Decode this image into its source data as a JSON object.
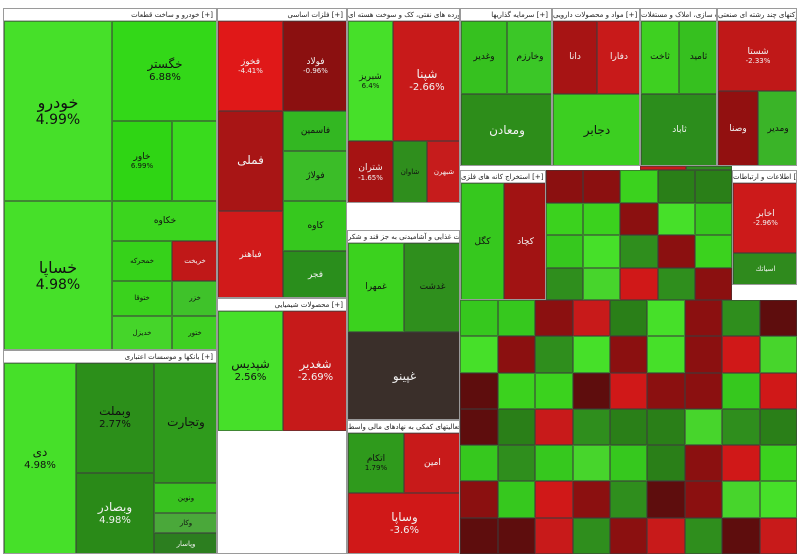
{
  "chart_data": {
    "type": "treemap",
    "header_suffix": "[+]",
    "sectors": [
      {
        "name": "خودرو و ساخت قطعات",
        "tiles": [
          {
            "name": "خودرو",
            "value": "4.99%",
            "color": "#46e029"
          },
          {
            "name": "خگستر",
            "value": "6.88%",
            "color": "#33d818"
          },
          {
            "name": "خساپا",
            "value": "4.98%",
            "color": "#46e029"
          },
          {
            "name": "خاور",
            "value": "6.99%",
            "color": "#2fd514"
          },
          {
            "name": "",
            "value": "",
            "color": "#39db1d"
          },
          {
            "name": "خكاوه",
            "value": "",
            "color": "#3bd51e"
          },
          {
            "name": "خمحركه",
            "value": "",
            "color": "#36d21a"
          },
          {
            "name": "خريخت",
            "value": "",
            "color": "#c01818"
          },
          {
            "name": "ختوقا",
            "value": "",
            "color": "#3ad21d"
          },
          {
            "name": "خزر",
            "value": "",
            "color": "#3fc22a"
          },
          {
            "name": "خديزل",
            "value": "",
            "color": "#45d52a"
          },
          {
            "name": "ختور",
            "value": "",
            "color": "#3fd022"
          },
          {
            "name": "خچرخش",
            "value": "",
            "color": "#3cc426"
          }
        ]
      },
      {
        "name": "بانکها و موسسات اعتباری",
        "tiles": [
          {
            "name": "دی",
            "value": "4.98%",
            "color": "#46e029"
          },
          {
            "name": "وبملت",
            "value": "2.77%",
            "color": "#2c8f1a"
          },
          {
            "name": "وبصادر",
            "value": "4.98%",
            "color": "#2a8a18"
          },
          {
            "name": "وتجارت",
            "value": "",
            "color": "#2f9b1c"
          },
          {
            "name": "ونوين",
            "value": "",
            "color": "#38c21f"
          },
          {
            "name": "وكار",
            "value": "",
            "color": "#4aa83a"
          },
          {
            "name": "وپاسار",
            "value": "",
            "color": "#2c7e1f"
          }
        ]
      },
      {
        "name": "فلزات اساسی",
        "tiles": [
          {
            "name": "فولاد",
            "value": "-0.96%",
            "color": "#8b1010"
          },
          {
            "name": "فخوز",
            "value": "-4.41%",
            "color": "#e01818"
          },
          {
            "name": "فملی",
            "value": "",
            "color": "#a81515"
          },
          {
            "name": "فاسمین",
            "value": "",
            "color": "#33b722"
          },
          {
            "name": "فباهنر",
            "value": "",
            "color": "#d11a1a"
          },
          {
            "name": "فولاژ",
            "value": "",
            "color": "#3bbd28"
          },
          {
            "name": "كاوه",
            "value": "",
            "color": "#36c81e"
          },
          {
            "name": "فجر",
            "value": "",
            "color": "#2a8e1c"
          },
          {
            "name": "ذوب",
            "value": "",
            "color": "#3ed12a"
          }
        ]
      },
      {
        "name": "فراورده های نفتی، کک و سوخت هسته ای",
        "tiles": [
          {
            "name": "شبریز",
            "value": "6.4%",
            "color": "#46e029"
          },
          {
            "name": "شپنا",
            "value": "-2.66%",
            "color": "#c81a1a"
          },
          {
            "name": "شتران",
            "value": "-1.65%",
            "color": "#a61313"
          },
          {
            "name": "شاوان",
            "value": "",
            "color": "#2f8e1d"
          },
          {
            "name": "شبهرن",
            "value": "",
            "color": "#c61c1c"
          },
          {
            "name": "شپاس",
            "value": "",
            "color": "#3bd61e"
          }
        ]
      },
      {
        "name": "سرمایه گذاریها",
        "tiles": [
          {
            "name": "وغدير",
            "value": "",
            "color": "#36c11f"
          },
          {
            "name": "وخارزم",
            "value": "",
            "color": "#3bc727"
          },
          {
            "name": "ومعادن",
            "value": "",
            "color": "#2d8d1a"
          }
        ]
      },
      {
        "name": "مواد و محصولات دارویی",
        "tiles": [
          {
            "name": "دانا",
            "value": "",
            "color": "#a71414"
          },
          {
            "name": "دفارا",
            "value": "",
            "color": "#c81a1a"
          },
          {
            "name": "دجابر",
            "value": "",
            "color": "#3ccf21"
          }
        ]
      },
      {
        "name": "انبوه سازی، املاک و مستغلات",
        "tiles": [
          {
            "name": "ثاخت",
            "value": "",
            "color": "#3ed021"
          },
          {
            "name": "ثامید",
            "value": "",
            "color": "#36c01f"
          },
          {
            "name": "ثاباد",
            "value": "",
            "color": "#2c8d1c"
          }
        ]
      },
      {
        "name": "شرکتهای چند رشته ای صنعتی",
        "tiles": [
          {
            "name": "شستا",
            "value": "-2.33%",
            "color": "#c01818"
          },
          {
            "name": "وصنا",
            "value": "",
            "color": "#921010"
          },
          {
            "name": "ومدير",
            "value": "",
            "color": "#3ab428"
          },
          {
            "name": "واميد",
            "value": "",
            "color": "#b51616"
          }
        ]
      },
      {
        "name": "اطلاعات و ارتباطات",
        "tiles": [
          {
            "name": "اخابر",
            "value": "-2.96%",
            "color": "#cc1a1a"
          },
          {
            "name": "اسياتك",
            "value": "",
            "color": "#2f8a1d"
          }
        ]
      },
      {
        "name": "استخراج کانه های فلزی",
        "tiles": [
          {
            "name": "كگل",
            "value": "",
            "color": "#36c81e"
          },
          {
            "name": "كچاد",
            "value": "",
            "color": "#a11313"
          }
        ]
      },
      {
        "name": "محصولات شیمیایی",
        "tiles": [
          {
            "name": "شپدیس",
            "value": "2.56%",
            "color": "#46e029"
          },
          {
            "name": "شغدیر",
            "value": "-2.69%",
            "color": "#c61a1a"
          }
        ]
      },
      {
        "name": "محصولات غذایی و آشامیدنی به جز قند و شکر",
        "tiles": [
          {
            "name": "غمهرا",
            "value": "",
            "color": "#3bd21e"
          },
          {
            "name": "غدشت",
            "value": "",
            "color": "#2f8f1d"
          },
          {
            "name": "غپینو",
            "value": "",
            "color": "#3a2f2a"
          }
        ]
      },
      {
        "name": "فعالیتهای کمکی به نهادهای مالی واسط",
        "tiles": [
          {
            "name": "اتكام",
            "value": "1.79%",
            "color": "#2f9a1c"
          },
          {
            "name": "امين",
            "value": "",
            "color": "#c81a1a"
          },
          {
            "name": "وساپا",
            "value": "-3.6%",
            "color": "#d01818"
          }
        ]
      }
    ]
  }
}
